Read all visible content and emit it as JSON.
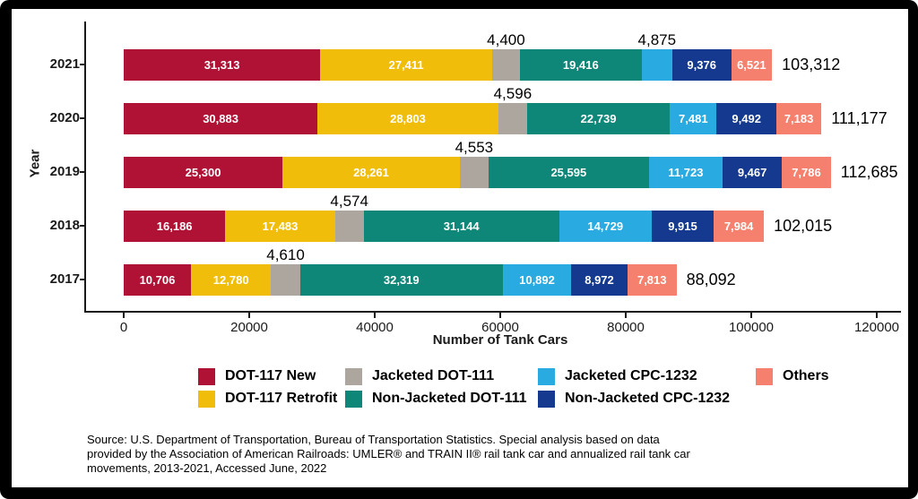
{
  "chart_data": {
    "type": "bar",
    "orientation": "horizontal",
    "stacked": true,
    "title": "",
    "xlabel": "Number of Tank Cars",
    "ylabel": "Year",
    "xlim": [
      0,
      130000
    ],
    "xticks": [
      0,
      20000,
      40000,
      60000,
      80000,
      100000,
      120000
    ],
    "grid": false,
    "legend_position": "bottom",
    "categories": [
      "2021",
      "2020",
      "2019",
      "2018",
      "2017"
    ],
    "series": [
      {
        "name": "DOT-117 New",
        "color": "#b01235",
        "values": [
          31313,
          30883,
          25300,
          16186,
          10706
        ]
      },
      {
        "name": "DOT-117 Retrofit",
        "color": "#f0be0a",
        "values": [
          27411,
          28803,
          28261,
          17483,
          12780
        ]
      },
      {
        "name": "Jacketed DOT-111",
        "color": "#aca69f",
        "values": [
          4400,
          4596,
          4553,
          4574,
          4610
        ]
      },
      {
        "name": "Non-Jacketed DOT-111",
        "color": "#0e8779",
        "values": [
          19416,
          22739,
          25595,
          31144,
          32319
        ]
      },
      {
        "name": "Jacketed CPC-1232",
        "color": "#29abe2",
        "values": [
          4875,
          7481,
          11723,
          14729,
          10892
        ]
      },
      {
        "name": "Non-Jacketed CPC-1232",
        "color": "#14398f",
        "values": [
          9376,
          9492,
          9467,
          9915,
          8972
        ]
      },
      {
        "name": "Others",
        "color": "#f5806d",
        "values": [
          6521,
          7183,
          7786,
          7984,
          7813
        ]
      }
    ],
    "totals": [
      103312,
      111177,
      112685,
      102015,
      88092
    ]
  },
  "legend": {
    "order": [
      0,
      2,
      4,
      6,
      1,
      3,
      5
    ]
  },
  "source": {
    "text": "Source: U.S. Department of Transportation, Bureau of Transportation Statistics. Special analysis based on data\nprovided by the Association of American Railroads: UMLER® and TRAIN II® rail tank car and annualized rail tank car\nmovements, 2013-2021, Accessed June, 2022"
  }
}
